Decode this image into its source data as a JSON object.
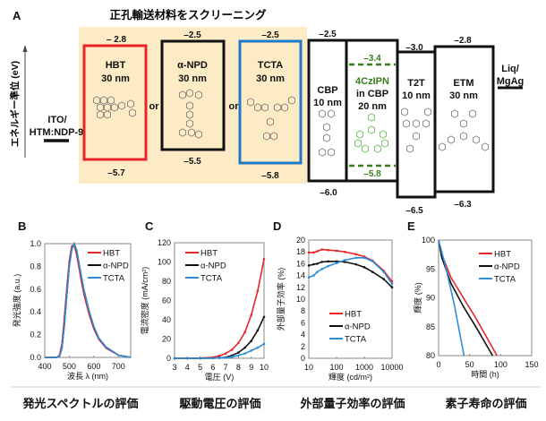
{
  "panel_a": {
    "panel_label": "A",
    "title": "正孔輸送材料をスクリーニング",
    "y_axis_label": "エネルギー準位 (eV)",
    "anode": {
      "line1": "ITO/",
      "line2": "HTM:NDP-9"
    },
    "cathode": {
      "line1": "Liq/",
      "line2": "MgAg"
    },
    "or_label": "or",
    "layers": [
      {
        "name": "HBT",
        "thickness": "30 nm",
        "lumo": "– 2.8",
        "homo": "–5.7",
        "color": "#e8262a"
      },
      {
        "name": "α-NPD",
        "thickness": "30 nm",
        "lumo": "–2.5",
        "homo": "–5.5",
        "color": "#111111"
      },
      {
        "name": "TCTA",
        "thickness": "30 nm",
        "lumo": "–2.5",
        "homo": "–5.8",
        "color": "#1f78c8"
      },
      {
        "name": "CBP",
        "thickness": "10 nm",
        "lumo": "–2.5",
        "homo": "–6.0",
        "color": "#111111"
      },
      {
        "name": "4CzIPN",
        "name2": "in CBP",
        "thickness": "20 nm",
        "lumo": "–3.4",
        "homo": "–5.8",
        "color": "#3a7d1e"
      },
      {
        "name": "T2T",
        "thickness": "10 nm",
        "lumo": "–3.0",
        "homo": "–6.5",
        "color": "#111111"
      },
      {
        "name": "ETM",
        "thickness": "30 nm",
        "lumo": "–2.8",
        "homo": "–6.3",
        "color": "#111111"
      }
    ],
    "highlight_color": "#fcebc4"
  },
  "captions": [
    "発光スペクトルの評価",
    "駆動電圧の評価",
    "外部量子効率の評価",
    "素子寿命の評価"
  ],
  "chart_data": [
    {
      "panel_label": "B",
      "type": "line",
      "xlabel": "波長 λ (nm)",
      "ylabel": "発光強度 (a.u.)",
      "xlim": [
        400,
        750
      ],
      "ylim": [
        0,
        1.0
      ],
      "xticks": [
        "400",
        "500",
        "600",
        "700"
      ],
      "xtick_values": [
        400,
        500,
        600,
        700
      ],
      "yticks": [
        "0.0",
        "0.2",
        "0.4",
        "0.6",
        "0.8",
        "1.0"
      ],
      "ytick_values": [
        0,
        0.2,
        0.4,
        0.6,
        0.8,
        1.0
      ],
      "legend": "top-right",
      "x": [
        400,
        450,
        460,
        470,
        480,
        490,
        500,
        510,
        520,
        530,
        540,
        550,
        560,
        580,
        600,
        620,
        650,
        700,
        750
      ],
      "series": [
        {
          "name": "HBT",
          "color": "#e8262a",
          "values": [
            0,
            0,
            0.02,
            0.12,
            0.35,
            0.62,
            0.85,
            0.98,
            0.99,
            0.9,
            0.78,
            0.66,
            0.55,
            0.38,
            0.25,
            0.16,
            0.08,
            0.02,
            0
          ]
        },
        {
          "name": "α-NPD",
          "color": "#111111",
          "values": [
            0,
            0,
            0.01,
            0.08,
            0.28,
            0.55,
            0.8,
            0.95,
            1.0,
            0.94,
            0.82,
            0.7,
            0.59,
            0.41,
            0.27,
            0.17,
            0.09,
            0.02,
            0
          ]
        },
        {
          "name": "TCTA",
          "color": "#2e8fd8",
          "values": [
            0,
            0,
            0.01,
            0.08,
            0.28,
            0.55,
            0.8,
            0.95,
            1.0,
            0.94,
            0.82,
            0.7,
            0.59,
            0.41,
            0.27,
            0.17,
            0.09,
            0.02,
            0
          ]
        }
      ]
    },
    {
      "panel_label": "C",
      "type": "line",
      "xlabel": "電圧 (V)",
      "ylabel": "電流密度 (mA/cm²)",
      "xlim": [
        3,
        10
      ],
      "ylim": [
        0,
        120
      ],
      "xticks": [
        "3",
        "4",
        "5",
        "6",
        "7",
        "8",
        "9",
        "10"
      ],
      "xtick_values": [
        3,
        4,
        5,
        6,
        7,
        8,
        9,
        10
      ],
      "yticks": [
        "0",
        "20",
        "40",
        "60",
        "80",
        "100",
        "120"
      ],
      "ytick_values": [
        0,
        20,
        40,
        60,
        80,
        100,
        120
      ],
      "legend": "top-left",
      "markers": true,
      "x": [
        3,
        4,
        5,
        6,
        6.5,
        7,
        7.5,
        8,
        8.5,
        9,
        9.5,
        10
      ],
      "series": [
        {
          "name": "HBT",
          "color": "#e8262a",
          "values": [
            0,
            0,
            0.2,
            1,
            2.5,
            5,
            9,
            16,
            27,
            45,
            70,
            103
          ]
        },
        {
          "name": "α-NPD",
          "color": "#111111",
          "values": [
            0,
            0,
            0,
            0.2,
            0.5,
            1,
            3,
            6,
            11,
            18,
            29,
            43
          ]
        },
        {
          "name": "TCTA",
          "color": "#2e8fd8",
          "values": [
            0,
            0,
            0,
            0.1,
            0.3,
            0.6,
            1.5,
            3,
            5,
            8,
            11,
            15
          ]
        }
      ]
    },
    {
      "panel_label": "D",
      "type": "line",
      "xlabel": "輝度 (cd/m²)",
      "ylabel": "外部量子効率 (%)",
      "xscale": "log",
      "xlim": [
        10,
        10000
      ],
      "ylim": [
        0,
        20
      ],
      "xticks": [
        "10",
        "100",
        "1000",
        "10000"
      ],
      "xtick_values": [
        10,
        100,
        1000,
        10000
      ],
      "yticks": [
        "0",
        "2",
        "4",
        "6",
        "8",
        "10",
        "12",
        "14",
        "16",
        "18",
        "20"
      ],
      "ytick_values": [
        0,
        2,
        4,
        6,
        8,
        10,
        12,
        14,
        16,
        18,
        20
      ],
      "legend": "bottom-right",
      "markers": true,
      "x": [
        10,
        15,
        20,
        30,
        50,
        100,
        200,
        500,
        1000,
        2000,
        5000,
        10000
      ],
      "series": [
        {
          "name": "HBT",
          "color": "#e8262a",
          "values": [
            17.9,
            17.9,
            18.1,
            18.4,
            18.3,
            18.2,
            18.0,
            17.6,
            17.2,
            16.5,
            14.8,
            13.0
          ]
        },
        {
          "name": "α-NPD",
          "color": "#111111",
          "values": [
            15.7,
            15.9,
            16.0,
            16.3,
            16.4,
            16.4,
            16.3,
            15.9,
            15.4,
            14.6,
            13.4,
            12.0
          ]
        },
        {
          "name": "TCTA",
          "color": "#2e8fd8",
          "values": [
            13.7,
            14.0,
            14.6,
            15.1,
            15.6,
            16.1,
            16.6,
            17.0,
            17.0,
            16.4,
            14.6,
            12.6
          ]
        }
      ]
    },
    {
      "panel_label": "E",
      "type": "line",
      "xlabel": "時間 (h)",
      "ylabel": "輝度 (%)",
      "xlim": [
        0,
        150
      ],
      "ylim": [
        80,
        100
      ],
      "xticks": [
        "0",
        "50",
        "100",
        "150"
      ],
      "xtick_values": [
        0,
        50,
        100,
        150
      ],
      "yticks": [
        "80",
        "85",
        "90",
        "95",
        "100"
      ],
      "ytick_values": [
        80,
        85,
        90,
        95,
        100
      ],
      "legend": "top-right",
      "series": [
        {
          "name": "HBT",
          "color": "#e8262a",
          "x": [
            0,
            5,
            20,
            40,
            60,
            94
          ],
          "values": [
            100,
            97.5,
            93.5,
            90,
            86.5,
            80
          ]
        },
        {
          "name": "α-NPD",
          "color": "#111111",
          "x": [
            0,
            5,
            20,
            40,
            60,
            87
          ],
          "values": [
            100,
            97,
            92.5,
            88.5,
            85,
            80
          ]
        },
        {
          "name": "TCTA",
          "color": "#2e8fd8",
          "x": [
            0,
            10,
            25,
            41
          ],
          "values": [
            100.5,
            96,
            89,
            80
          ]
        }
      ]
    }
  ]
}
